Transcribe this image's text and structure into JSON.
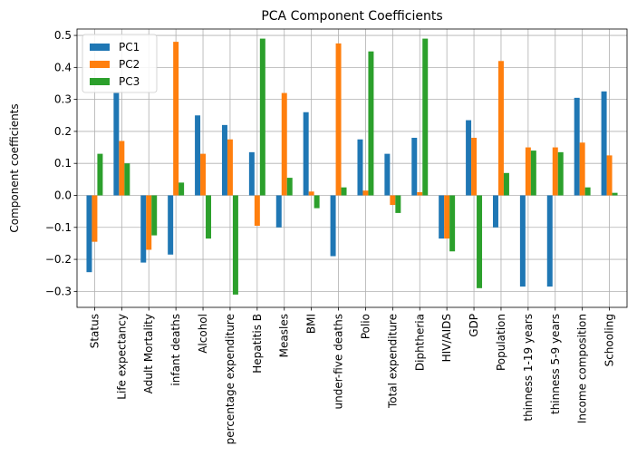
{
  "chart_data": {
    "type": "bar",
    "title": "PCA Component Coefficients",
    "xlabel": "",
    "ylabel": "Component coefficients",
    "ylim": [
      -0.35,
      0.52
    ],
    "yticks": [
      -0.3,
      -0.2,
      -0.1,
      0.0,
      0.1,
      0.2,
      0.3,
      0.4,
      0.5
    ],
    "ytick_labels": [
      "−0.3",
      "−0.2",
      "−0.1",
      "0.0",
      "0.1",
      "0.2",
      "0.3",
      "0.4",
      "0.5"
    ],
    "grid": true,
    "legend_position": "top-left",
    "categories": [
      "Status",
      "Life expectancy",
      "Adult Mortality",
      "infant deaths",
      "Alcohol",
      "percentage expenditure",
      "Hepatitis B",
      "Measles",
      "BMI",
      "under-five deaths",
      "Polio",
      "Total expenditure",
      "Diphtheria",
      "HIV/AIDS",
      "GDP",
      "Population",
      "thinness  1-19 years",
      "thinness 5-9 years",
      "Income composition",
      "Schooling"
    ],
    "series": [
      {
        "name": "PC1",
        "color": "#1f77b4",
        "values": [
          -0.24,
          0.32,
          -0.21,
          -0.185,
          0.25,
          0.22,
          0.135,
          -0.1,
          0.26,
          -0.19,
          0.175,
          0.13,
          0.18,
          -0.135,
          0.235,
          -0.1,
          -0.285,
          -0.285,
          0.305,
          0.325
        ]
      },
      {
        "name": "PC2",
        "color": "#ff7f0e",
        "values": [
          -0.145,
          0.17,
          -0.17,
          0.48,
          0.13,
          0.175,
          -0.095,
          0.32,
          0.012,
          0.475,
          0.015,
          -0.03,
          0.01,
          -0.135,
          0.18,
          0.42,
          0.15,
          0.15,
          0.165,
          0.125
        ]
      },
      {
        "name": "PC3",
        "color": "#2ca02c",
        "values": [
          0.13,
          0.1,
          -0.125,
          0.04,
          -0.135,
          -0.31,
          0.49,
          0.055,
          -0.04,
          0.025,
          0.45,
          -0.055,
          0.49,
          -0.175,
          -0.29,
          0.07,
          0.14,
          0.135,
          0.025,
          0.008
        ]
      }
    ]
  }
}
